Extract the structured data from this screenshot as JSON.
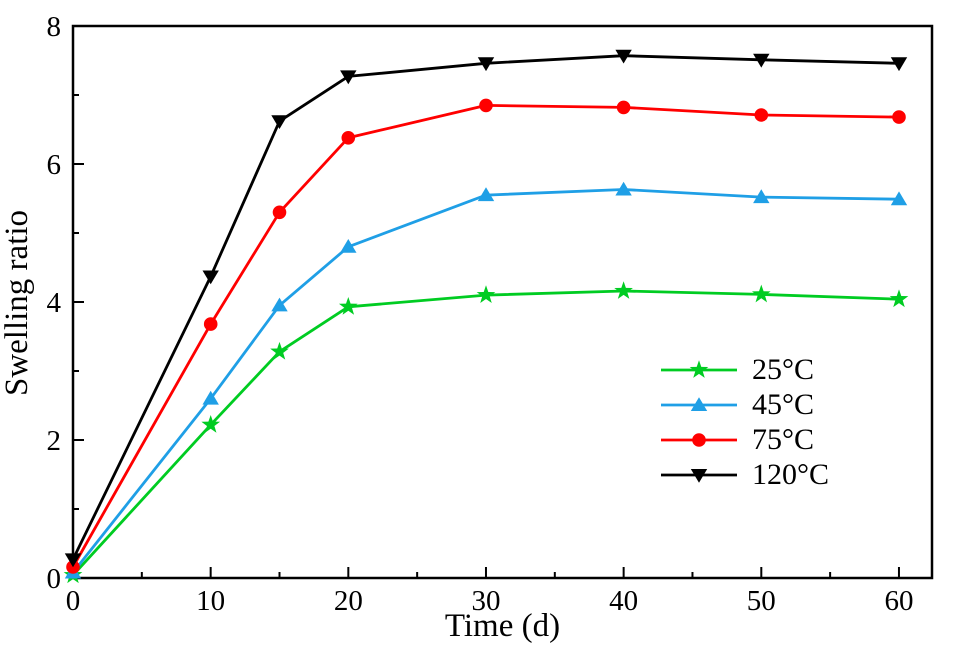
{
  "chart_data": {
    "type": "line",
    "title": "",
    "xlabel": "Time (d)",
    "ylabel": "Swelling ratio",
    "x": [
      0,
      10,
      15,
      20,
      30,
      40,
      50,
      60
    ],
    "series": [
      {
        "name": "25°C",
        "color": "#00CC22",
        "marker": "star",
        "values": [
          0.04,
          2.22,
          3.28,
          3.93,
          4.1,
          4.16,
          4.11,
          4.04
        ]
      },
      {
        "name": "45°C",
        "color": "#1F9FE6",
        "marker": "triangle-up",
        "values": [
          0.08,
          2.6,
          3.95,
          4.8,
          5.55,
          5.63,
          5.52,
          5.49
        ]
      },
      {
        "name": "75°C",
        "color": "#FF0000",
        "marker": "circle",
        "values": [
          0.16,
          3.68,
          5.3,
          6.38,
          6.85,
          6.82,
          6.71,
          6.68
        ]
      },
      {
        "name": "120°C",
        "color": "#000000",
        "marker": "triangle-down",
        "values": [
          0.27,
          4.37,
          6.62,
          7.27,
          7.46,
          7.57,
          7.51,
          7.46
        ]
      }
    ],
    "xlim": [
      0,
      62.4
    ],
    "ylim": [
      0,
      8
    ],
    "x_major_ticks": [
      0,
      10,
      20,
      30,
      40,
      50,
      60
    ],
    "x_minor_ticks": [
      5,
      15,
      25,
      35,
      45,
      55
    ],
    "y_major_ticks": [
      0,
      2,
      4,
      6,
      8
    ],
    "y_minor_ticks": [
      1,
      3,
      5,
      7
    ],
    "grid": false,
    "legend_position": "inside-right",
    "frame_color": "#000000"
  }
}
